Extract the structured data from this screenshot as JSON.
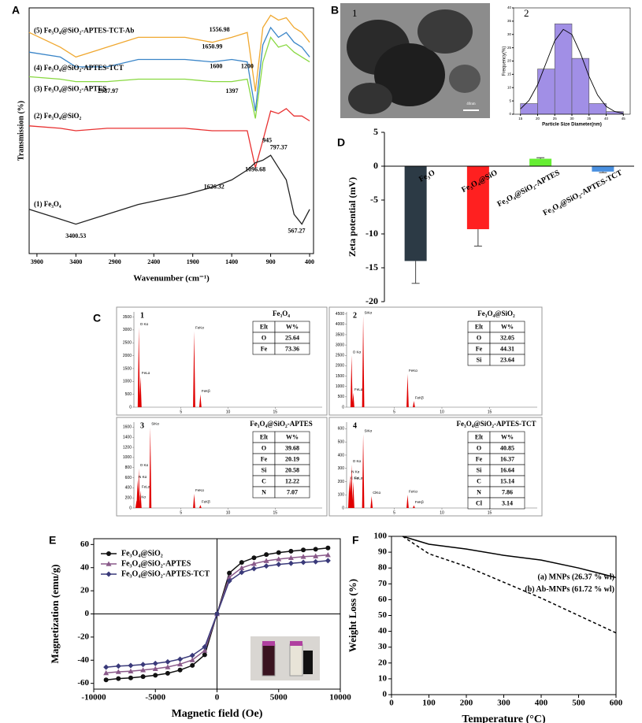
{
  "chart_data": [
    {
      "type": "line",
      "panel_label": "A",
      "x_label": "Wavenumber (cm⁻¹)",
      "y_label": "Transmission (%)",
      "xlim": [
        4000,
        350
      ],
      "ylim": [
        0,
        100
      ],
      "xticks": [
        3900,
        3400,
        2900,
        2400,
        1900,
        1400,
        900,
        400
      ],
      "x": [
        4000,
        3600,
        3400,
        3000,
        2600,
        2000,
        1650,
        1400,
        1200,
        1096.68,
        1000,
        900,
        800,
        700,
        600,
        500,
        400
      ],
      "series": [
        {
          "name": "(5) Fe₃O₄@SiO₂-APTES-TCT-Ab",
          "color": "#f0a830",
          "values": [
            90,
            84,
            80,
            84,
            88,
            88,
            86,
            88,
            90,
            66,
            92,
            97,
            95,
            96,
            92,
            90,
            86
          ]
        },
        {
          "name": "(4) Fe₃O₄@SiO₂-APTES-TCT",
          "color": "#3a85c8",
          "values": [
            82,
            80,
            76,
            76,
            79,
            79,
            78,
            79,
            78,
            58,
            85,
            92,
            88,
            90,
            86,
            84,
            80
          ]
        },
        {
          "name": "(3) Fe₃O₄@SiO₂-APTES",
          "color": "#88d840",
          "values": [
            72,
            71,
            70,
            70,
            71,
            71,
            70,
            70,
            71,
            55,
            78,
            88,
            84,
            85,
            82,
            80,
            78
          ]
        },
        {
          "name": "(2) Fe₃O₄@SiO₂",
          "color": "#e83030",
          "values": [
            52,
            51,
            50,
            51,
            51,
            51,
            50,
            50,
            50,
            35,
            46,
            58,
            57,
            59,
            56,
            56,
            54
          ]
        },
        {
          "name": "(1) Fe₃O₄",
          "color": "#222222",
          "values": [
            18,
            14,
            12,
            16,
            20,
            24,
            27,
            30,
            34,
            37,
            38,
            40,
            35,
            30,
            16,
            12,
            18
          ]
        }
      ],
      "annotations": [
        {
          "x": 1556.98,
          "y": 91
        },
        {
          "x": 1650.99,
          "y": 84
        },
        {
          "x": 1600,
          "y": 76
        },
        {
          "x": 1200,
          "y": 76
        },
        {
          "x": 2987.97,
          "y": 66
        },
        {
          "x": 1397,
          "y": 66
        },
        {
          "x": 945,
          "y": 46
        },
        {
          "x": 797.37,
          "y": 43
        },
        {
          "x": 1096.68,
          "y": 34
        },
        {
          "x": 1626.32,
          "y": 27
        },
        {
          "x": 3400.53,
          "y": 7
        },
        {
          "x": 567.27,
          "y": 9
        }
      ]
    },
    {
      "type": "image",
      "panel_label": "B",
      "subpanel": "1",
      "scale_bar": "40nm"
    },
    {
      "type": "histogram",
      "subpanel": "2",
      "x_label": "Particle Size Diameter(nm)",
      "y_label": "Frequency(%)",
      "bins": [
        15,
        20,
        25,
        30,
        35,
        40,
        45
      ],
      "values": [
        4,
        17,
        34,
        21,
        4,
        1
      ],
      "color": "#a18fe6",
      "xlim": [
        13,
        47
      ],
      "xticks": [
        15,
        20,
        25,
        30,
        35,
        40,
        45
      ],
      "ylim": [
        0,
        40
      ],
      "yticks": [
        0,
        5,
        10,
        15,
        20,
        25,
        30,
        35,
        40
      ],
      "fit": {
        "x": [
          15,
          17.5,
          20,
          22.5,
          25,
          27.5,
          30,
          32.5,
          35,
          37.5,
          40,
          42.5,
          45
        ],
        "values": [
          2,
          5.2,
          11.1,
          19.4,
          27.6,
          31.9,
          30,
          22.9,
          14.2,
          7.2,
          2.9,
          1,
          0.3
        ]
      }
    },
    {
      "type": "bar",
      "panel_label": "D",
      "y_label": "Zeta potential (mV)",
      "categories": [
        "Fe₃O",
        "Fe₃O₄@SiO",
        "Fe₃O₄@SiO₂-APTES",
        "Fe₃O₄@SiO₂-APTES-TCT"
      ],
      "values": [
        -14,
        -9.3,
        1.1,
        -0.8
      ],
      "errors": [
        3.3,
        2.5,
        0.15,
        0.15
      ],
      "colors": [
        "#2c3a45",
        "#ff2020",
        "#66ee33",
        "#4a90e0"
      ],
      "ylim": [
        -20,
        5
      ],
      "yticks": [
        -20,
        -15,
        -10,
        -5,
        0,
        5
      ]
    },
    {
      "type": "spectrum",
      "panel_label": "C",
      "number": "1",
      "title": "Fe₃O₄",
      "color": "#e00000",
      "xlim": [
        0,
        20
      ],
      "xticks": [
        5,
        10,
        15
      ],
      "ylim": [
        0,
        3700
      ],
      "yticks": [
        0,
        500,
        1000,
        1500,
        2000,
        2500,
        3000,
        3500
      ],
      "x": [
        0.52,
        0.7,
        6.4,
        7.06
      ],
      "values": [
        3100,
        1200,
        2950,
        500
      ],
      "peak_labels": [
        "O Kα",
        "FeLα",
        "FeKα",
        "FeKβ"
      ],
      "table": {
        "header": [
          "Elt",
          "W%"
        ],
        "rows": [
          [
            "O",
            25.64
          ],
          [
            "Fe",
            73.36
          ]
        ]
      }
    },
    {
      "type": "spectrum",
      "number": "2",
      "title": "Fe₃O₄@SiO₂",
      "color": "#e00000",
      "xlim": [
        0,
        20
      ],
      "xticks": [
        5,
        10,
        15
      ],
      "ylim": [
        0,
        4600
      ],
      "yticks": [
        0,
        500,
        1000,
        1500,
        2000,
        2500,
        3000,
        3500,
        4000,
        4500
      ],
      "x": [
        0.52,
        0.7,
        1.74,
        6.4,
        7.06
      ],
      "values": [
        2500,
        700,
        4400,
        1600,
        300
      ],
      "peak_labels": [
        "O Kα",
        "FeLα",
        "SiKα",
        "FeKα",
        "FeKβ"
      ],
      "table": {
        "header": [
          "Elt",
          "W%"
        ],
        "rows": [
          [
            "O",
            32.05
          ],
          [
            "Fe",
            44.31
          ],
          [
            "Si",
            23.64
          ]
        ]
      }
    },
    {
      "type": "spectrum",
      "number": "3",
      "title": "Fe₃O₄@SiO₂-APTES",
      "color": "#e00000",
      "xlim": [
        0,
        20
      ],
      "xticks": [
        5,
        10,
        15
      ],
      "ylim": [
        0,
        1700
      ],
      "yticks": [
        0,
        200,
        400,
        600,
        800,
        1000,
        1200,
        1400,
        1600
      ],
      "x": [
        0.28,
        0.39,
        0.52,
        0.7,
        1.74,
        6.4,
        7.06
      ],
      "values": [
        150,
        550,
        780,
        350,
        1600,
        280,
        60
      ],
      "peak_labels": [
        "C Kα",
        "N Kα",
        "O Kα",
        "FeLα",
        "SiKα",
        "FeKα",
        "FeKβ"
      ],
      "table": {
        "header": [
          "Elt",
          "W%"
        ],
        "rows": [
          [
            "O",
            39.68
          ],
          [
            "Fe",
            20.19
          ],
          [
            "Si",
            20.58
          ],
          [
            "C",
            12.22
          ],
          [
            "N",
            7.07
          ]
        ]
      }
    },
    {
      "type": "spectrum",
      "number": "4",
      "title": "Fe₃O₄@SiO₂-APTES-TCT",
      "color": "#e00000",
      "xlim": [
        0,
        20
      ],
      "xticks": [
        5,
        10,
        15
      ],
      "ylim": [
        0,
        650
      ],
      "yticks": [
        0,
        100,
        200,
        300,
        400,
        500,
        600
      ],
      "x": [
        0.28,
        0.39,
        0.52,
        0.7,
        1.74,
        2.62,
        6.4,
        7.06
      ],
      "values": [
        200,
        250,
        330,
        200,
        560,
        90,
        100,
        20
      ],
      "peak_labels": [
        "C Kα",
        "N Kα",
        "O Kα",
        "FeLα",
        "SiKα",
        "ClKα",
        "FeKα",
        "FeKβ"
      ],
      "table": {
        "header": [
          "Elt",
          "W%"
        ],
        "rows": [
          [
            "O",
            40.85
          ],
          [
            "Fe",
            16.37
          ],
          [
            "Si",
            16.64
          ],
          [
            "C",
            15.14
          ],
          [
            "N",
            7.86
          ],
          [
            "Cl",
            3.14
          ]
        ]
      }
    },
    {
      "type": "line",
      "panel_label": "E",
      "x_label": "Magnetic field (Oe)",
      "y_label": "Magnetization (emu/g)",
      "xlim": [
        -10000,
        10000
      ],
      "ylim": [
        -65,
        65
      ],
      "xticks": [
        -10000,
        -5000,
        0,
        5000,
        10000
      ],
      "yticks": [
        -60,
        -40,
        -20,
        0,
        20,
        40,
        60
      ],
      "x": [
        -9000,
        -8000,
        -7000,
        -6000,
        -5000,
        -4000,
        -3000,
        -2000,
        -1000,
        0,
        1000,
        2000,
        3000,
        4000,
        5000,
        6000,
        7000,
        8000,
        9000
      ],
      "series": [
        {
          "name": "Fe₃O₄@SiO₂",
          "color": "#111111",
          "marker": "circle",
          "values": [
            -57,
            -55.9,
            -55.3,
            -54.2,
            -53,
            -51.3,
            -48.5,
            -44.5,
            -35.3,
            0,
            35.3,
            44.5,
            48.5,
            51.3,
            53,
            54.2,
            55.3,
            55.9,
            57
          ]
        },
        {
          "name": "Fe₃O₄@SiO₂-APTES",
          "color": "#8a5a8a",
          "marker": "triangle",
          "values": [
            -51,
            -50,
            -49.5,
            -48.5,
            -47.4,
            -45.9,
            -43.4,
            -39.8,
            -31.6,
            0,
            31.6,
            39.8,
            43.4,
            45.9,
            47.4,
            48.5,
            49.5,
            50,
            51
          ]
        },
        {
          "name": "Fe₃O₄@SiO₂-APTES-TCT",
          "color": "#3a3a7a",
          "marker": "diamond",
          "values": [
            -46,
            -45.1,
            -44.6,
            -43.7,
            -42.8,
            -41.4,
            -39.1,
            -35.9,
            -28.5,
            0,
            28.5,
            35.9,
            39.1,
            41.4,
            42.8,
            43.7,
            44.6,
            45.1,
            46
          ]
        }
      ]
    },
    {
      "type": "line",
      "panel_label": "F",
      "x_label": "Temperature (°C)",
      "y_label": "Weight Loss (%)",
      "xlim": [
        0,
        600
      ],
      "ylim": [
        0,
        100
      ],
      "xticks": [
        0,
        100,
        200,
        300,
        400,
        500,
        600
      ],
      "yticks": [
        0,
        10,
        20,
        30,
        40,
        50,
        60,
        70,
        80,
        90,
        100
      ],
      "x": [
        30,
        100,
        200,
        300,
        400,
        500,
        600
      ],
      "series": [
        {
          "name": "(a) MNPs (26.37 % wl)",
          "color": "#000000",
          "values": [
            100,
            95,
            92,
            88,
            85,
            80,
            74
          ]
        },
        {
          "name": "(b) Ab-MNPs (61.72 % wl)",
          "color": "#000000",
          "dash": true,
          "values": [
            100,
            89,
            81,
            71,
            61,
            50,
            39
          ]
        }
      ]
    }
  ]
}
